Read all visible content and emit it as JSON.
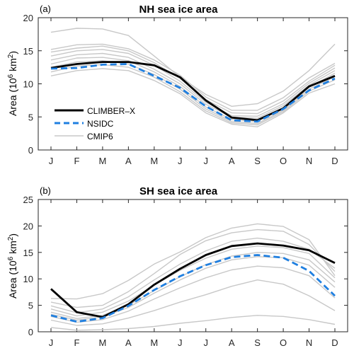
{
  "months": [
    "J",
    "F",
    "M",
    "A",
    "M",
    "J",
    "J",
    "A",
    "S",
    "O",
    "N",
    "D"
  ],
  "legend": {
    "climber": "CLIMBER–X",
    "nsidc": "NSIDC",
    "cmip6": "CMIP6"
  },
  "colors": {
    "climber": "#000000",
    "nsidc": "#1f7fe0",
    "cmip6": "#c8c8c8"
  },
  "chart_data": [
    {
      "type": "line",
      "panel": "(a)",
      "title": "NH sea ice area",
      "ylabel_main": "Area (10",
      "ylabel_sup": "6",
      "ylabel_unit": " km",
      "ylabel_sup2": "2",
      "ylabel_end": ")",
      "ylim": [
        0,
        20
      ],
      "yticks": [
        0,
        5,
        10,
        15,
        20
      ],
      "legend_position": "left",
      "series": [
        {
          "name": "CLIMBER–X",
          "style": "climber",
          "values": [
            12.4,
            13.0,
            13.3,
            13.3,
            12.8,
            11.0,
            7.5,
            4.9,
            4.5,
            6.3,
            9.6,
            11.2
          ]
        },
        {
          "name": "NSIDC",
          "style": "nsidc",
          "values": [
            12.3,
            12.4,
            12.9,
            13.0,
            11.2,
            9.4,
            6.6,
            4.5,
            4.3,
            6.2,
            9.0,
            10.8
          ]
        },
        {
          "style": "cmip6",
          "values": [
            17.8,
            18.4,
            18.3,
            17.3,
            14.2,
            11.0,
            8.4,
            6.6,
            7.0,
            8.9,
            12.0,
            16.0
          ]
        },
        {
          "style": "cmip6",
          "values": [
            15.2,
            15.9,
            16.0,
            15.3,
            13.6,
            11.3,
            8.0,
            6.0,
            6.0,
            7.9,
            10.9,
            13.1
          ]
        },
        {
          "style": "cmip6",
          "values": [
            14.8,
            15.4,
            15.7,
            15.0,
            13.2,
            10.8,
            7.6,
            5.6,
            5.5,
            7.4,
            10.4,
            12.8
          ]
        },
        {
          "style": "cmip6",
          "values": [
            14.2,
            15.0,
            15.2,
            14.6,
            12.8,
            10.4,
            7.2,
            5.2,
            5.1,
            7.0,
            10.1,
            12.4
          ]
        },
        {
          "style": "cmip6",
          "values": [
            13.6,
            14.4,
            14.6,
            14.0,
            12.2,
            10.0,
            6.9,
            5.0,
            4.8,
            6.7,
            9.8,
            12.0
          ]
        },
        {
          "style": "cmip6",
          "values": [
            13.0,
            13.9,
            14.0,
            13.5,
            11.8,
            9.6,
            6.5,
            4.6,
            4.3,
            6.3,
            9.5,
            11.6
          ]
        },
        {
          "style": "cmip6",
          "values": [
            12.5,
            13.3,
            13.5,
            13.0,
            11.4,
            9.2,
            6.2,
            4.3,
            4.0,
            6.0,
            9.2,
            11.1
          ]
        },
        {
          "style": "cmip6",
          "values": [
            11.8,
            12.7,
            12.9,
            12.5,
            11.0,
            8.8,
            5.9,
            4.1,
            3.8,
            5.8,
            8.9,
            10.6
          ]
        },
        {
          "style": "cmip6",
          "values": [
            11.2,
            12.0,
            12.3,
            12.0,
            10.5,
            8.5,
            5.6,
            3.9,
            3.5,
            5.6,
            8.6,
            10.0
          ]
        }
      ]
    },
    {
      "type": "line",
      "panel": "(b)",
      "title": "SH sea ice area",
      "ylabel_main": "Area (10",
      "ylabel_sup": "6",
      "ylabel_unit": " km",
      "ylabel_sup2": "2",
      "ylabel_end": ")",
      "ylim": [
        0,
        25
      ],
      "yticks": [
        0,
        5,
        10,
        15,
        20,
        25
      ],
      "series": [
        {
          "name": "CLIMBER–X",
          "style": "climber",
          "values": [
            8.1,
            3.7,
            2.8,
            5.2,
            8.9,
            11.9,
            14.5,
            16.2,
            16.7,
            16.3,
            15.4,
            13.0
          ]
        },
        {
          "name": "NSIDC",
          "style": "nsidc",
          "values": [
            3.1,
            1.9,
            2.6,
            4.9,
            7.9,
            10.5,
            12.6,
            14.1,
            14.5,
            14.0,
            11.5,
            6.8
          ]
        },
        {
          "style": "cmip6",
          "values": [
            6.3,
            6.2,
            7.2,
            9.7,
            12.8,
            15.1,
            17.8,
            19.6,
            20.4,
            19.9,
            17.4,
            10.6
          ]
        },
        {
          "style": "cmip6",
          "values": [
            5.6,
            4.6,
            5.0,
            7.6,
            11.0,
            14.6,
            17.2,
            18.7,
            19.3,
            19.0,
            16.5,
            11.4
          ]
        },
        {
          "style": "cmip6",
          "values": [
            4.9,
            3.6,
            4.3,
            6.6,
            9.8,
            12.8,
            15.3,
            17.1,
            17.7,
            17.1,
            15.6,
            12.0
          ]
        },
        {
          "style": "cmip6",
          "values": [
            4.3,
            3.0,
            3.7,
            5.8,
            8.8,
            11.6,
            13.9,
            15.6,
            16.2,
            15.9,
            14.8,
            10.2
          ]
        },
        {
          "style": "cmip6",
          "values": [
            3.7,
            2.5,
            3.1,
            5.0,
            7.8,
            10.4,
            12.7,
            14.3,
            15.0,
            14.8,
            13.6,
            9.4
          ]
        },
        {
          "style": "cmip6",
          "values": [
            3.3,
            2.2,
            2.8,
            4.6,
            7.3,
            9.8,
            12.0,
            13.6,
            14.2,
            14.0,
            12.6,
            8.4
          ]
        },
        {
          "style": "cmip6",
          "values": [
            2.9,
            1.8,
            2.3,
            3.9,
            6.2,
            8.3,
            10.2,
            11.7,
            12.4,
            12.1,
            10.6,
            6.4
          ]
        },
        {
          "style": "cmip6",
          "values": [
            2.2,
            1.2,
            1.5,
            2.6,
            4.0,
            5.6,
            7.0,
            8.6,
            9.8,
            9.0,
            6.8,
            4.0
          ]
        },
        {
          "style": "cmip6",
          "values": [
            0.8,
            0.3,
            0.4,
            0.6,
            1.0,
            1.6,
            2.1,
            2.7,
            3.1,
            2.9,
            2.3,
            1.4
          ]
        }
      ]
    }
  ]
}
